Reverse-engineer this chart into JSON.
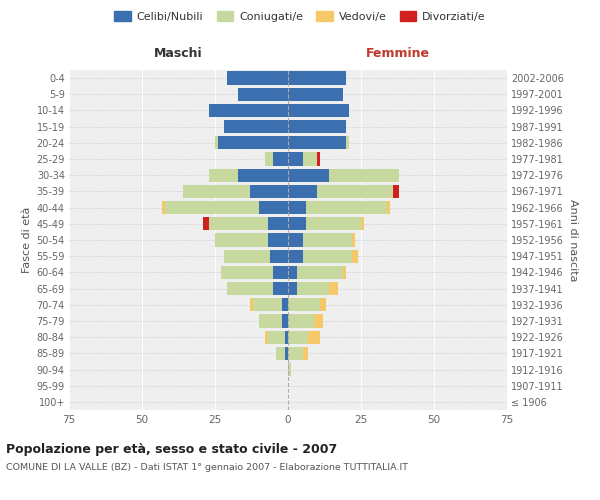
{
  "age_groups": [
    "100+",
    "95-99",
    "90-94",
    "85-89",
    "80-84",
    "75-79",
    "70-74",
    "65-69",
    "60-64",
    "55-59",
    "50-54",
    "45-49",
    "40-44",
    "35-39",
    "30-34",
    "25-29",
    "20-24",
    "15-19",
    "10-14",
    "5-9",
    "0-4"
  ],
  "birth_years": [
    "≤ 1906",
    "1907-1911",
    "1912-1916",
    "1917-1921",
    "1922-1926",
    "1927-1931",
    "1932-1936",
    "1937-1941",
    "1942-1946",
    "1947-1951",
    "1952-1956",
    "1957-1961",
    "1962-1966",
    "1967-1971",
    "1972-1976",
    "1977-1981",
    "1982-1986",
    "1987-1991",
    "1992-1996",
    "1997-2001",
    "2002-2006"
  ],
  "male": {
    "celibi": [
      0,
      0,
      0,
      1,
      1,
      2,
      2,
      5,
      5,
      6,
      7,
      7,
      10,
      13,
      17,
      5,
      24,
      22,
      27,
      17,
      21
    ],
    "coniugati": [
      0,
      0,
      0,
      3,
      6,
      8,
      10,
      16,
      18,
      16,
      18,
      20,
      32,
      23,
      10,
      3,
      1,
      0,
      0,
      0,
      0
    ],
    "vedovi": [
      0,
      0,
      0,
      0,
      1,
      0,
      1,
      0,
      0,
      0,
      0,
      0,
      1,
      0,
      0,
      0,
      0,
      0,
      0,
      0,
      0
    ],
    "divorziati": [
      0,
      0,
      0,
      0,
      0,
      0,
      0,
      0,
      0,
      0,
      0,
      2,
      0,
      0,
      0,
      0,
      0,
      0,
      0,
      0,
      0
    ]
  },
  "female": {
    "nubili": [
      0,
      0,
      0,
      0,
      0,
      0,
      0,
      3,
      3,
      5,
      5,
      6,
      6,
      10,
      14,
      5,
      20,
      20,
      21,
      19,
      20
    ],
    "coniugate": [
      0,
      0,
      1,
      5,
      7,
      9,
      11,
      11,
      16,
      17,
      17,
      19,
      28,
      26,
      24,
      5,
      1,
      0,
      0,
      0,
      0
    ],
    "vedove": [
      0,
      0,
      0,
      2,
      4,
      3,
      2,
      3,
      1,
      2,
      1,
      1,
      1,
      0,
      0,
      0,
      0,
      0,
      0,
      0,
      0
    ],
    "divorziate": [
      0,
      0,
      0,
      0,
      0,
      0,
      0,
      0,
      0,
      0,
      0,
      0,
      0,
      2,
      0,
      1,
      0,
      0,
      0,
      0,
      0
    ]
  },
  "colors": {
    "celibi": "#3c6faf",
    "coniugati": "#c8d9a0",
    "vedovi": "#f5c96a",
    "divorziati": "#d12020"
  },
  "xlim": 75,
  "title": "Popolazione per età, sesso e stato civile - 2007",
  "subtitle": "COMUNE DI LA VALLE (BZ) - Dati ISTAT 1° gennaio 2007 - Elaborazione TUTTITALIA.IT",
  "legend_labels": [
    "Celibi/Nubili",
    "Coniugati/e",
    "Vedovi/e",
    "Divorziati/e"
  ],
  "xlabel_left": "Maschi",
  "xlabel_right": "Femmine",
  "ylabel": "Fasce di età",
  "ylabel_right": "Anni di nascita",
  "bg_color": "#ffffff",
  "plot_bg_color": "#efefef"
}
